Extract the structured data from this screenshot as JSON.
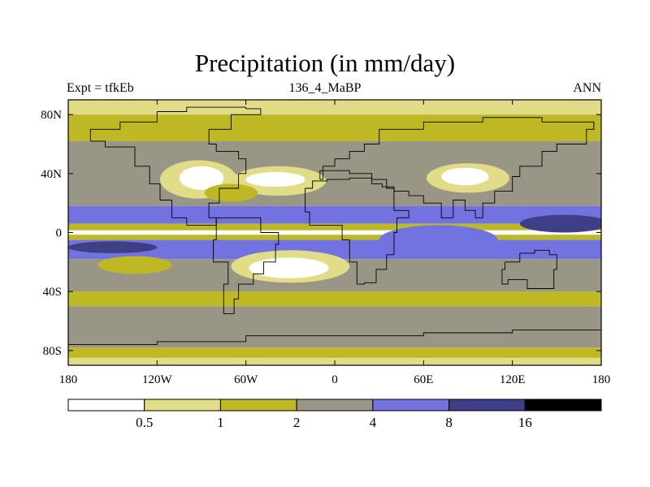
{
  "chart_data": {
    "type": "heatmap",
    "title": "Precipitation (in mm/day)",
    "subtitle_left": "Expt = tfkEb",
    "subtitle_center": "136_4_MaBP",
    "subtitle_right": "ANN",
    "x_ticks": [
      "180",
      "120W",
      "60W",
      "0",
      "60E",
      "120E",
      "180"
    ],
    "x_range": [
      -180,
      180
    ],
    "y_ticks": [
      "80N",
      "40N",
      "0",
      "40S",
      "80S"
    ],
    "y_range": [
      -90,
      90
    ],
    "colorbar": {
      "levels": [
        "0.5",
        "1",
        "2",
        "4",
        "8",
        "16"
      ],
      "colors": [
        "#ffffff",
        "#e0dc88",
        "#bdb824",
        "#999685",
        "#7272e0",
        "#3f3f88",
        "#000000"
      ]
    },
    "features": {
      "zonal_bands": [
        {
          "lat_range": [
            80,
            90
          ],
          "level": 1
        },
        {
          "lat_range": [
            62,
            80
          ],
          "level": 2
        },
        {
          "lat_range": [
            18,
            62
          ],
          "level": 3
        },
        {
          "lat_range": [
            6,
            18
          ],
          "level": 4
        },
        {
          "lat_range": [
            1.5,
            6
          ],
          "level": 2
        },
        {
          "lat_range": [
            -1.5,
            1.5
          ],
          "level": 0
        },
        {
          "lat_range": [
            -5,
            -1.5
          ],
          "level": 2
        },
        {
          "lat_range": [
            -18,
            -5
          ],
          "level": 4
        },
        {
          "lat_range": [
            -40,
            -18
          ],
          "level": 3
        },
        {
          "lat_range": [
            -50,
            -40
          ],
          "level": 2
        },
        {
          "lat_range": [
            -78,
            -50
          ],
          "level": 3
        },
        {
          "lat_range": [
            -85,
            -78
          ],
          "level": 2
        },
        {
          "lat_range": [
            -90,
            -85
          ],
          "level": 1
        }
      ],
      "dry_regions": [
        {
          "name": "north-america-dry",
          "center": [
            -92,
            36
          ],
          "radii": [
            26,
            13
          ],
          "level": 1
        },
        {
          "name": "north-america-core",
          "center": [
            -90,
            37
          ],
          "radii": [
            15,
            8
          ],
          "level": 0
        },
        {
          "name": "sahara-dry",
          "center": [
            -38,
            35
          ],
          "radii": [
            32,
            10
          ],
          "level": 1
        },
        {
          "name": "sahara-core",
          "center": [
            -40,
            36
          ],
          "radii": [
            20,
            5
          ],
          "level": 0
        },
        {
          "name": "asia-dry",
          "center": [
            90,
            37
          ],
          "radii": [
            28,
            10
          ],
          "level": 1
        },
        {
          "name": "asia-core",
          "center": [
            88,
            38
          ],
          "radii": [
            16,
            6
          ],
          "level": 0
        },
        {
          "name": "southern-africa-dry",
          "center": [
            -30,
            -23
          ],
          "radii": [
            40,
            11
          ],
          "level": 1
        },
        {
          "name": "southern-africa-core",
          "center": [
            -31,
            -24
          ],
          "radii": [
            27,
            7
          ],
          "level": 0
        },
        {
          "name": "east-pacific-dry",
          "center": [
            -135,
            -22
          ],
          "radii": [
            25,
            6
          ],
          "level": 2
        },
        {
          "name": "east-pacific-dry-2",
          "center": [
            -70,
            27
          ],
          "radii": [
            18,
            6
          ],
          "level": 2
        }
      ],
      "wet_regions": [
        {
          "name": "west-pacific-wet",
          "center": [
            155,
            6
          ],
          "radii": [
            30,
            6
          ],
          "level": 5
        },
        {
          "name": "south-pacific-wet",
          "center": [
            -150,
            -10
          ],
          "radii": [
            30,
            4
          ],
          "level": 5
        },
        {
          "name": "indian-ocean-wet",
          "center": [
            70,
            -5
          ],
          "radii": [
            40,
            10
          ],
          "level": 4
        }
      ],
      "land_outlines": [
        [
          [
            -120,
            82
          ],
          [
            -100,
            85
          ],
          [
            -60,
            84
          ],
          [
            -50,
            80
          ],
          [
            -70,
            70
          ],
          [
            -85,
            60
          ],
          [
            -80,
            55
          ],
          [
            -65,
            50
          ],
          [
            -60,
            40
          ],
          [
            -65,
            30
          ],
          [
            -78,
            20
          ],
          [
            -85,
            10
          ],
          [
            -80,
            5
          ],
          [
            -100,
            10
          ],
          [
            -110,
            22
          ],
          [
            -118,
            33
          ],
          [
            -125,
            45
          ],
          [
            -135,
            58
          ],
          [
            -155,
            62
          ],
          [
            -165,
            70
          ],
          [
            -145,
            75
          ],
          [
            -120,
            82
          ]
        ],
        [
          [
            -80,
            10
          ],
          [
            -60,
            10
          ],
          [
            -50,
            0
          ],
          [
            -38,
            -8
          ],
          [
            -40,
            -20
          ],
          [
            -48,
            -28
          ],
          [
            -55,
            -35
          ],
          [
            -65,
            -45
          ],
          [
            -68,
            -55
          ],
          [
            -75,
            -50
          ],
          [
            -75,
            -35
          ],
          [
            -72,
            -20
          ],
          [
            -82,
            -5
          ],
          [
            -80,
            10
          ]
        ],
        [
          [
            -20,
            30
          ],
          [
            -15,
            35
          ],
          [
            -5,
            36
          ],
          [
            10,
            37
          ],
          [
            25,
            33
          ],
          [
            32,
            31
          ],
          [
            40,
            15
          ],
          [
            50,
            10
          ],
          [
            42,
            0
          ],
          [
            40,
            -15
          ],
          [
            35,
            -25
          ],
          [
            28,
            -34
          ],
          [
            20,
            -35
          ],
          [
            15,
            -20
          ],
          [
            10,
            -5
          ],
          [
            5,
            5
          ],
          [
            -8,
            5
          ],
          [
            -17,
            14
          ],
          [
            -20,
            30
          ]
        ],
        [
          [
            -10,
            36
          ],
          [
            -8,
            45
          ],
          [
            0,
            50
          ],
          [
            10,
            55
          ],
          [
            20,
            60
          ],
          [
            30,
            70
          ],
          [
            60,
            75
          ],
          [
            100,
            78
          ],
          [
            140,
            75
          ],
          [
            175,
            70
          ],
          [
            170,
            60
          ],
          [
            150,
            55
          ],
          [
            140,
            45
          ],
          [
            125,
            38
          ],
          [
            120,
            28
          ],
          [
            108,
            20
          ],
          [
            100,
            10
          ],
          [
            95,
            15
          ],
          [
            88,
            22
          ],
          [
            80,
            10
          ],
          [
            72,
            20
          ],
          [
            60,
            25
          ],
          [
            50,
            28
          ],
          [
            40,
            30
          ],
          [
            35,
            36
          ],
          [
            25,
            40
          ],
          [
            10,
            42
          ],
          [
            -10,
            36
          ]
        ],
        [
          [
            115,
            -20
          ],
          [
            125,
            -14
          ],
          [
            135,
            -12
          ],
          [
            145,
            -15
          ],
          [
            150,
            -25
          ],
          [
            148,
            -38
          ],
          [
            140,
            -38
          ],
          [
            130,
            -32
          ],
          [
            117,
            -35
          ],
          [
            113,
            -25
          ],
          [
            115,
            -20
          ]
        ],
        [
          [
            -180,
            -76
          ],
          [
            -120,
            -74
          ],
          [
            -60,
            -70
          ],
          [
            0,
            -70
          ],
          [
            60,
            -68
          ],
          [
            120,
            -66
          ],
          [
            180,
            -72
          ],
          [
            180,
            -90
          ],
          [
            -180,
            -90
          ],
          [
            -180,
            -76
          ]
        ]
      ]
    }
  }
}
